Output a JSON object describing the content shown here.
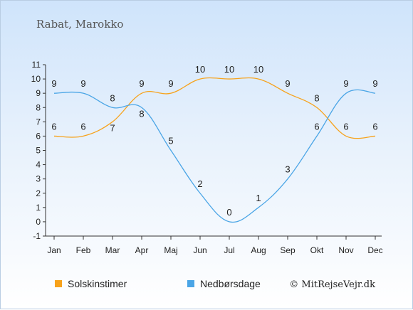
{
  "chart_data": {
    "type": "line",
    "title": "Rabat, Marokko",
    "categories": [
      "Jan",
      "Feb",
      "Mar",
      "Apr",
      "Maj",
      "Jun",
      "Jul",
      "Aug",
      "Sep",
      "Okt",
      "Nov",
      "Dec"
    ],
    "ylim": [
      -1,
      11
    ],
    "yticks": [
      -1,
      0,
      1,
      2,
      3,
      4,
      5,
      6,
      7,
      8,
      9,
      10,
      11
    ],
    "grid": false,
    "legend_position": "bottom",
    "series": [
      {
        "name": "Solskinstimer",
        "color": "#f7a21b",
        "values": [
          6,
          6,
          7,
          9,
          9,
          10,
          10,
          10,
          9,
          8,
          6,
          6
        ]
      },
      {
        "name": "Nedbørsdage",
        "color": "#4aa5e6",
        "values": [
          9,
          9,
          8,
          8,
          5,
          2,
          0,
          1,
          3,
          6,
          9,
          9
        ]
      }
    ],
    "copyright": "© MitRejseVejr.dk"
  }
}
